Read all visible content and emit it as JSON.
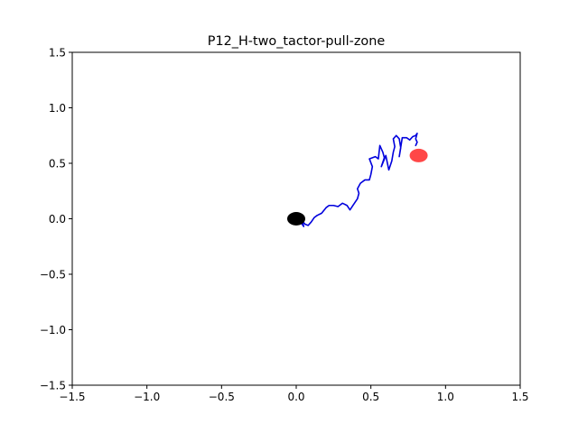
{
  "chart_data": {
    "type": "line",
    "title": "P12_H-two_tactor-pull-zone",
    "xlabel": "",
    "ylabel": "",
    "xlim": [
      -1.5,
      1.5
    ],
    "ylim": [
      -1.5,
      1.5
    ],
    "xticks": [
      -1.5,
      -1.0,
      -0.5,
      0.0,
      0.5,
      1.0,
      1.5
    ],
    "yticks": [
      -1.5,
      -1.0,
      -0.5,
      0.0,
      0.5,
      1.0,
      1.5
    ],
    "xtick_labels": [
      "−1.5",
      "−1.0",
      "−0.5",
      "0.0",
      "0.5",
      "1.0",
      "1.5"
    ],
    "ytick_labels": [
      "−1.5",
      "−1.0",
      "−0.5",
      "0.0",
      "0.5",
      "1.0",
      "1.5"
    ],
    "grid": false,
    "legend": "none",
    "series": [
      {
        "color": "#0000dd",
        "x": [
          0.0,
          0.03,
          0.05,
          0.04,
          0.06,
          0.08,
          0.1,
          0.12,
          0.14,
          0.17,
          0.2,
          0.22,
          0.25,
          0.28,
          0.31,
          0.34,
          0.36,
          0.38,
          0.41,
          0.42,
          0.41,
          0.43,
          0.46,
          0.49,
          0.5,
          0.51,
          0.49,
          0.51,
          0.53,
          0.55,
          0.56,
          0.58,
          0.59,
          0.57,
          0.6,
          0.62,
          0.64,
          0.65,
          0.66,
          0.65,
          0.67,
          0.69,
          0.7,
          0.69,
          0.71,
          0.74,
          0.76,
          0.78,
          0.8,
          0.81,
          0.8,
          0.81,
          0.8
        ],
        "y": [
          -0.02,
          -0.03,
          -0.07,
          -0.02,
          -0.05,
          -0.06,
          -0.03,
          0.01,
          0.03,
          0.05,
          0.1,
          0.12,
          0.12,
          0.11,
          0.14,
          0.12,
          0.08,
          0.12,
          0.18,
          0.23,
          0.27,
          0.32,
          0.35,
          0.35,
          0.4,
          0.47,
          0.54,
          0.55,
          0.56,
          0.54,
          0.66,
          0.6,
          0.55,
          0.47,
          0.57,
          0.44,
          0.52,
          0.6,
          0.65,
          0.72,
          0.75,
          0.72,
          0.64,
          0.56,
          0.73,
          0.73,
          0.71,
          0.74,
          0.75,
          0.77,
          0.72,
          0.69,
          0.66
        ]
      }
    ],
    "markers": [
      {
        "name": "start",
        "x": 0.0,
        "y": 0.0,
        "color": "#000000"
      },
      {
        "name": "target",
        "x": 0.82,
        "y": 0.57,
        "color": "#ff3333"
      }
    ]
  }
}
